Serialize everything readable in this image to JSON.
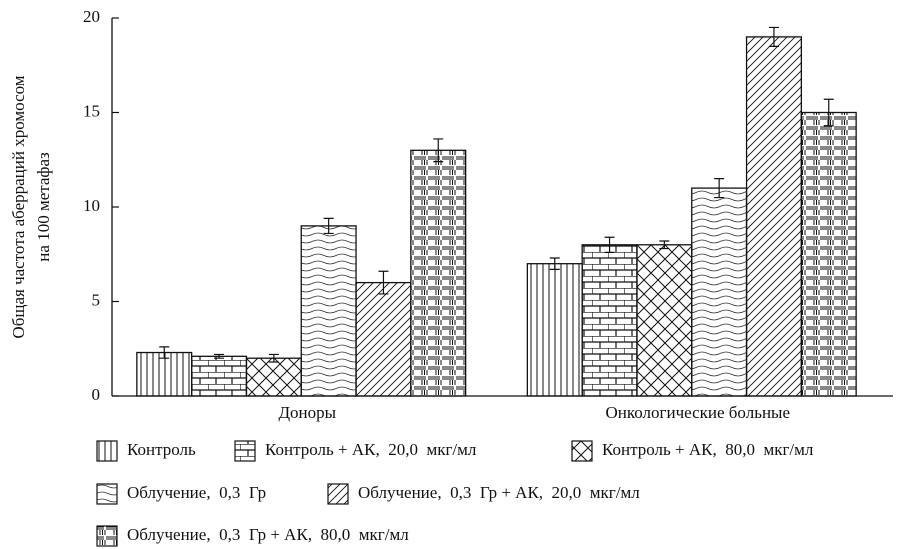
{
  "chart_data": {
    "type": "bar",
    "ylabel": [
      "Общая частота аберраций хромосом",
      "на 100 метафаз"
    ],
    "categories": [
      "Доноры",
      "Онкологические больные"
    ],
    "ylim": [
      0,
      20
    ],
    "yticks": [
      0,
      5,
      10,
      15,
      20
    ],
    "grid": false,
    "color": "#111111",
    "series": [
      {
        "name": "Контроль",
        "pattern": "vertical",
        "values": [
          2.3,
          7.0
        ],
        "errors": [
          0.3,
          0.3
        ]
      },
      {
        "name": "Контроль + АК,  20,0  мкг/мл",
        "pattern": "brick",
        "values": [
          2.1,
          8.0
        ],
        "errors": [
          0.1,
          0.4
        ]
      },
      {
        "name": "Контроль + АК,  80,0  мкг/мл",
        "pattern": "cross",
        "values": [
          2.0,
          8.0
        ],
        "errors": [
          0.2,
          0.2
        ]
      },
      {
        "name": "Облучение,  0,3  Гр",
        "pattern": "wave",
        "values": [
          9.0,
          11.0
        ],
        "errors": [
          0.4,
          0.5
        ]
      },
      {
        "name": "Облучение,  0,3  Гр + АК,  20,0  мкг/мл",
        "pattern": "diagonal",
        "values": [
          6.0,
          19.0
        ],
        "errors": [
          0.6,
          0.5
        ]
      },
      {
        "name": "Облучение,  0,3  Гр + АК,  80,0  мкг/мл",
        "pattern": "grid",
        "values": [
          13.0,
          15.0
        ],
        "errors": [
          0.6,
          0.7
        ]
      }
    ]
  }
}
